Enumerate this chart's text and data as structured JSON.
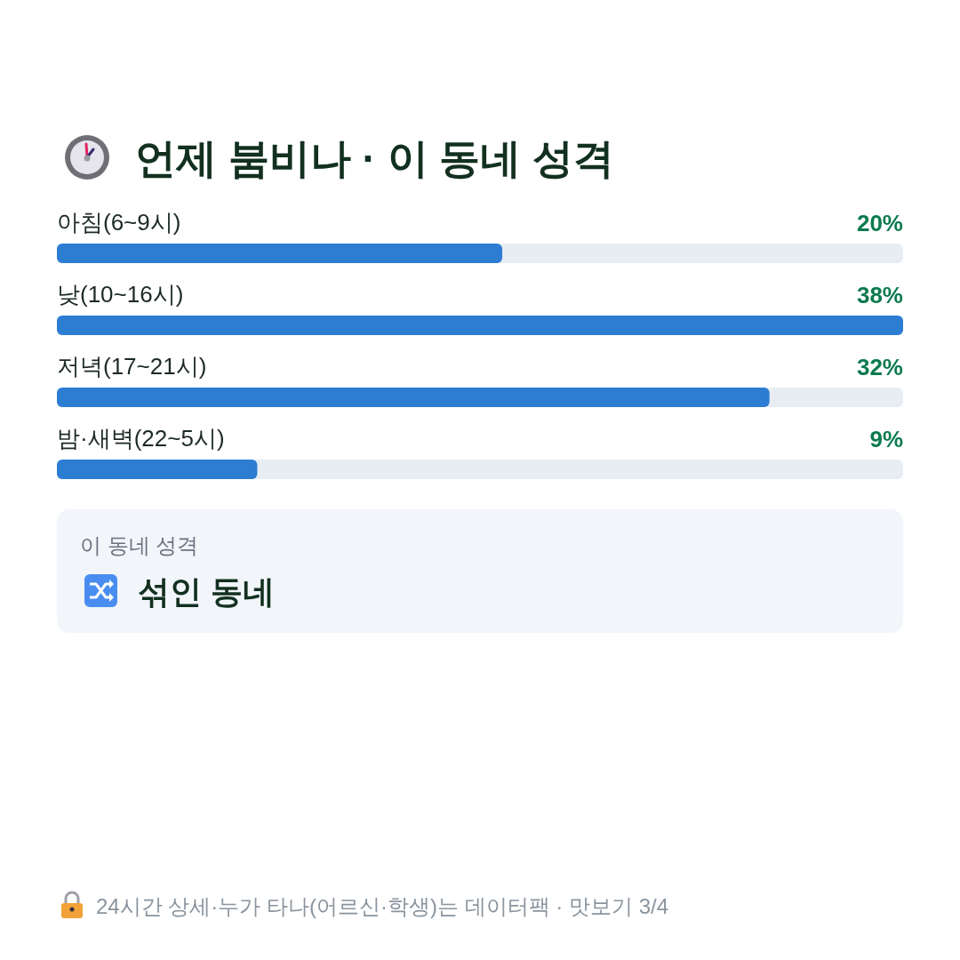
{
  "chart_data": {
    "type": "bar",
    "orientation": "horizontal",
    "title": "언제 붐비나 · 이 동네 성격",
    "categories": [
      "아침(6~9시)",
      "낮(10~16시)",
      "저녁(17~21시)",
      "밤·새벽(22~5시)"
    ],
    "values": [
      20,
      38,
      32,
      9
    ],
    "value_labels": [
      "20%",
      "38%",
      "32%",
      "9%"
    ],
    "color": "#2d7dd2",
    "annotations": [
      "이 동네 성격",
      "섞인 동네",
      "24시간 상세·누가 타나(어르신·학생)는 데이터팩 · 맛보기 3/4"
    ]
  }
}
